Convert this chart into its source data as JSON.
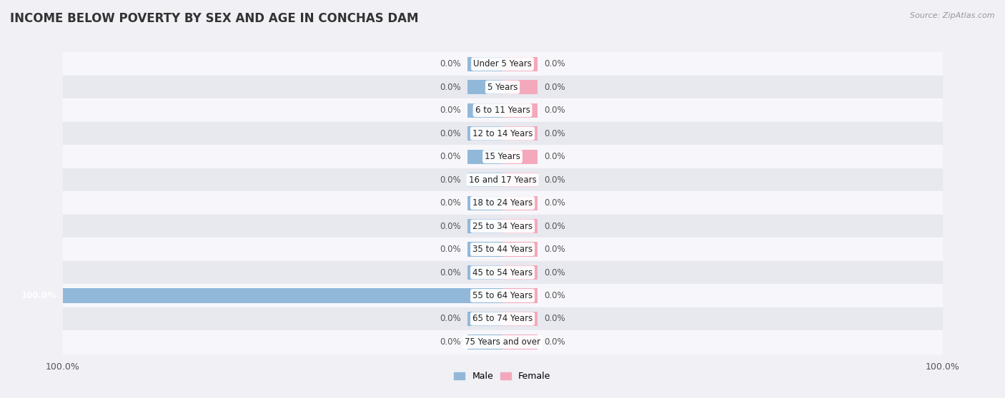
{
  "title": "INCOME BELOW POVERTY BY SEX AND AGE IN CONCHAS DAM",
  "source": "Source: ZipAtlas.com",
  "categories": [
    "Under 5 Years",
    "5 Years",
    "6 to 11 Years",
    "12 to 14 Years",
    "15 Years",
    "16 and 17 Years",
    "18 to 24 Years",
    "25 to 34 Years",
    "35 to 44 Years",
    "45 to 54 Years",
    "55 to 64 Years",
    "65 to 74 Years",
    "75 Years and over"
  ],
  "male_values": [
    0.0,
    0.0,
    0.0,
    0.0,
    0.0,
    0.0,
    0.0,
    0.0,
    0.0,
    0.0,
    100.0,
    0.0,
    0.0
  ],
  "female_values": [
    0.0,
    0.0,
    0.0,
    0.0,
    0.0,
    0.0,
    0.0,
    0.0,
    0.0,
    0.0,
    0.0,
    0.0,
    0.0
  ],
  "male_color": "#91b8d9",
  "female_color": "#f4a8bc",
  "male_label": "Male",
  "female_label": "Female",
  "bar_height": 0.62,
  "stub_pct": 8.0,
  "xlim": 100.0,
  "bg_color": "#f0f0f5",
  "row_bg_even": "#f7f7fb",
  "row_bg_odd": "#e8e8ef",
  "title_fontsize": 12,
  "cat_fontsize": 8.5,
  "val_fontsize": 8.5,
  "tick_fontsize": 9,
  "source_fontsize": 8
}
